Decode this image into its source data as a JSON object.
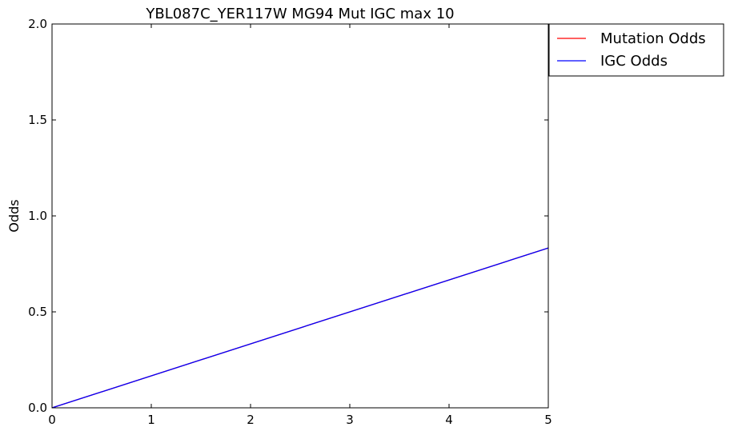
{
  "chart_data": {
    "type": "line",
    "title": "YBL087C_YER117W MG94 Mut IGC max 10",
    "xlabel": "",
    "ylabel": "Odds",
    "xlim": [
      0,
      5
    ],
    "ylim": [
      0,
      2
    ],
    "x_ticks": [
      0,
      1,
      2,
      3,
      4,
      5
    ],
    "y_ticks": [
      0,
      0.5,
      1,
      1.5,
      2
    ],
    "x_tick_labels": [
      "0",
      "1",
      "2",
      "3",
      "4",
      "5"
    ],
    "y_tick_labels": [
      "0.0",
      "0.5",
      "1.0",
      "1.5",
      "2.0"
    ],
    "grid": false,
    "legend_position": "outside-top-right",
    "series": [
      {
        "name": "Mutation Odds",
        "color": "#ff0000",
        "x": [
          0,
          5
        ],
        "y": [
          0,
          0.833
        ]
      },
      {
        "name": "IGC Odds",
        "color": "#0000ff",
        "x": [
          0,
          5
        ],
        "y": [
          0,
          0.833
        ]
      }
    ]
  }
}
